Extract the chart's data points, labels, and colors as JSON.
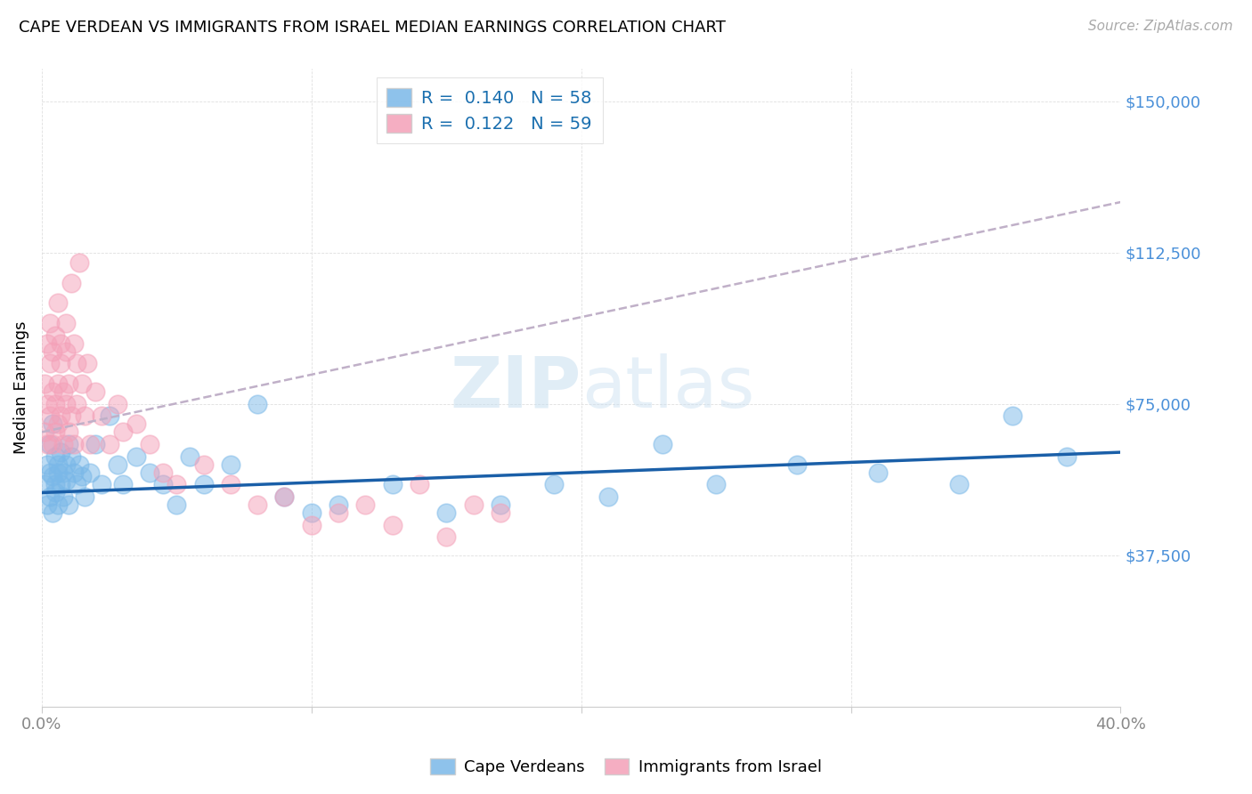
{
  "title": "CAPE VERDEAN VS IMMIGRANTS FROM ISRAEL MEDIAN EARNINGS CORRELATION CHART",
  "source": "Source: ZipAtlas.com",
  "ylabel": "Median Earnings",
  "y_ticks": [
    0,
    37500,
    75000,
    112500,
    150000
  ],
  "y_tick_labels": [
    "",
    "$37,500",
    "$75,000",
    "$112,500",
    "$150,000"
  ],
  "x_min": 0.0,
  "x_max": 0.4,
  "y_min": 0,
  "y_max": 158000,
  "blue_r": 0.14,
  "blue_n": 58,
  "pink_r": 0.122,
  "pink_n": 59,
  "blue_color": "#7ab8e8",
  "pink_color": "#f4a0b8",
  "blue_line_color": "#1a5fa8",
  "pink_line_color": "#d06090",
  "legend_label_blue": "Cape Verdeans",
  "legend_label_pink": "Immigrants from Israel",
  "blue_scatter_x": [
    0.001,
    0.002,
    0.002,
    0.003,
    0.003,
    0.003,
    0.004,
    0.004,
    0.004,
    0.005,
    0.005,
    0.005,
    0.006,
    0.006,
    0.006,
    0.007,
    0.007,
    0.008,
    0.008,
    0.009,
    0.009,
    0.01,
    0.01,
    0.011,
    0.012,
    0.013,
    0.014,
    0.015,
    0.016,
    0.018,
    0.02,
    0.022,
    0.025,
    0.028,
    0.03,
    0.035,
    0.04,
    0.045,
    0.05,
    0.055,
    0.06,
    0.07,
    0.08,
    0.09,
    0.1,
    0.11,
    0.13,
    0.15,
    0.17,
    0.19,
    0.21,
    0.23,
    0.25,
    0.28,
    0.31,
    0.34,
    0.36,
    0.38
  ],
  "blue_scatter_y": [
    55000,
    60000,
    50000,
    58000,
    65000,
    52000,
    57000,
    70000,
    48000,
    62000,
    55000,
    53000,
    60000,
    58000,
    50000,
    63000,
    55000,
    58000,
    52000,
    60000,
    56000,
    65000,
    50000,
    62000,
    58000,
    55000,
    60000,
    57000,
    52000,
    58000,
    65000,
    55000,
    72000,
    60000,
    55000,
    62000,
    58000,
    55000,
    50000,
    62000,
    55000,
    60000,
    75000,
    52000,
    48000,
    50000,
    55000,
    48000,
    50000,
    55000,
    52000,
    65000,
    55000,
    60000,
    58000,
    55000,
    72000,
    62000
  ],
  "pink_scatter_x": [
    0.001,
    0.001,
    0.002,
    0.002,
    0.002,
    0.003,
    0.003,
    0.003,
    0.004,
    0.004,
    0.004,
    0.005,
    0.005,
    0.005,
    0.006,
    0.006,
    0.006,
    0.007,
    0.007,
    0.007,
    0.008,
    0.008,
    0.009,
    0.009,
    0.009,
    0.01,
    0.01,
    0.011,
    0.011,
    0.012,
    0.012,
    0.013,
    0.013,
    0.014,
    0.015,
    0.016,
    0.017,
    0.018,
    0.02,
    0.022,
    0.025,
    0.028,
    0.03,
    0.035,
    0.04,
    0.045,
    0.05,
    0.06,
    0.07,
    0.08,
    0.09,
    0.1,
    0.11,
    0.12,
    0.13,
    0.14,
    0.15,
    0.16,
    0.17
  ],
  "pink_scatter_y": [
    68000,
    80000,
    75000,
    90000,
    65000,
    85000,
    95000,
    72000,
    88000,
    78000,
    65000,
    92000,
    75000,
    68000,
    100000,
    80000,
    70000,
    85000,
    72000,
    90000,
    78000,
    65000,
    88000,
    75000,
    95000,
    80000,
    68000,
    105000,
    72000,
    90000,
    65000,
    85000,
    75000,
    110000,
    80000,
    72000,
    85000,
    65000,
    78000,
    72000,
    65000,
    75000,
    68000,
    70000,
    65000,
    58000,
    55000,
    60000,
    55000,
    50000,
    52000,
    45000,
    48000,
    50000,
    45000,
    55000,
    42000,
    50000,
    48000
  ]
}
